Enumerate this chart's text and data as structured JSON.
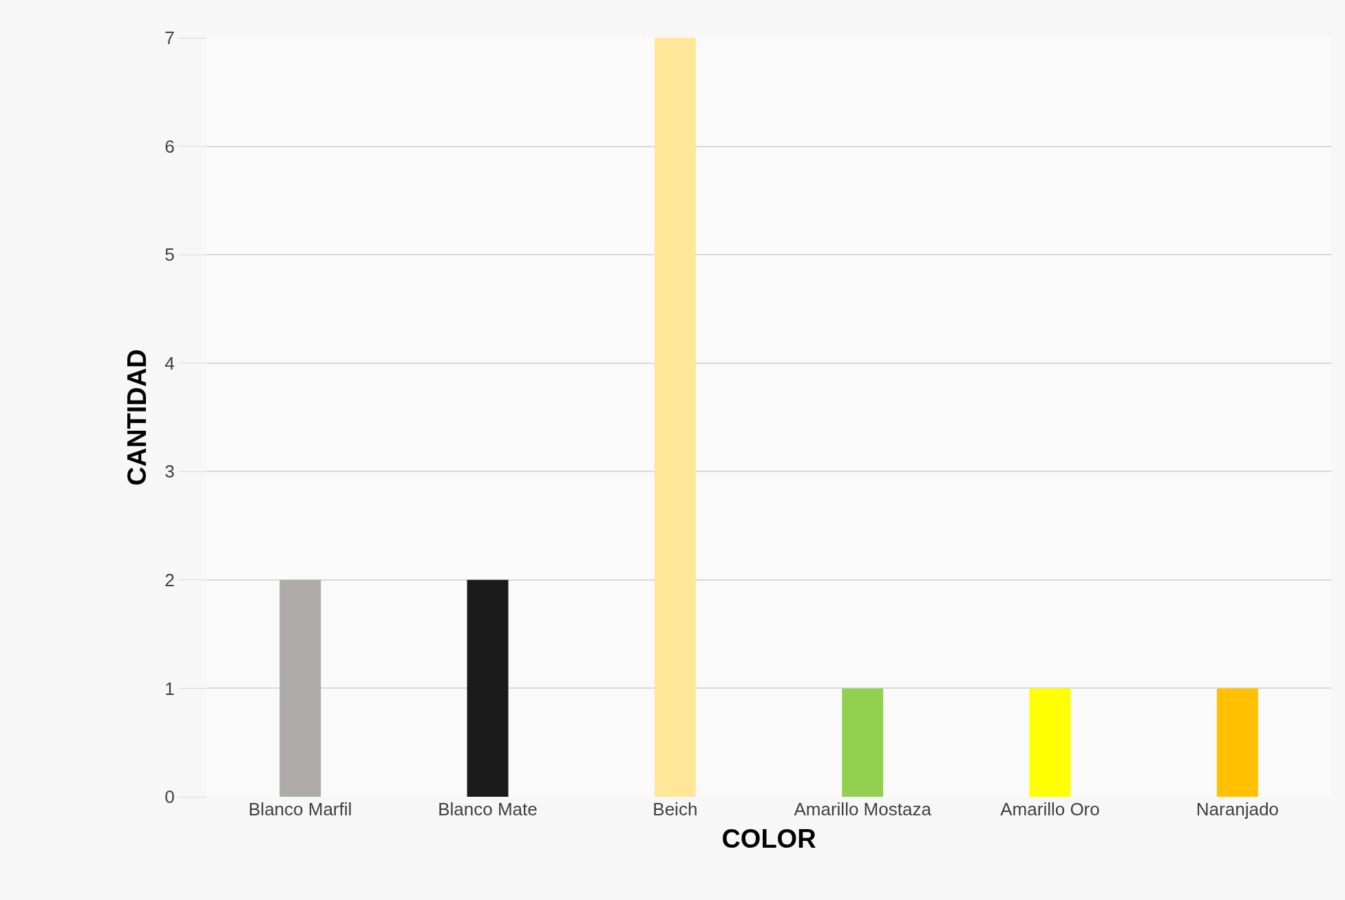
{
  "chart_data": {
    "type": "bar",
    "xlabel": "COLOR",
    "ylabel": "CANTIDAD",
    "categories": [
      "Blanco Marfil",
      "Blanco Mate",
      "Beich",
      "Amarillo Mostaza",
      "Amarillo Oro",
      "Naranjado"
    ],
    "values": [
      2,
      2,
      7,
      1,
      1,
      1
    ],
    "colors": [
      "#aeaaaa",
      "#1a1a1a",
      "#ffe699",
      "#92d050",
      "#ffff00",
      "#ffc000"
    ],
    "ylim": [
      0,
      7
    ],
    "yticks": [
      0,
      1,
      2,
      3,
      4,
      5,
      6,
      7
    ],
    "grid": "y"
  }
}
